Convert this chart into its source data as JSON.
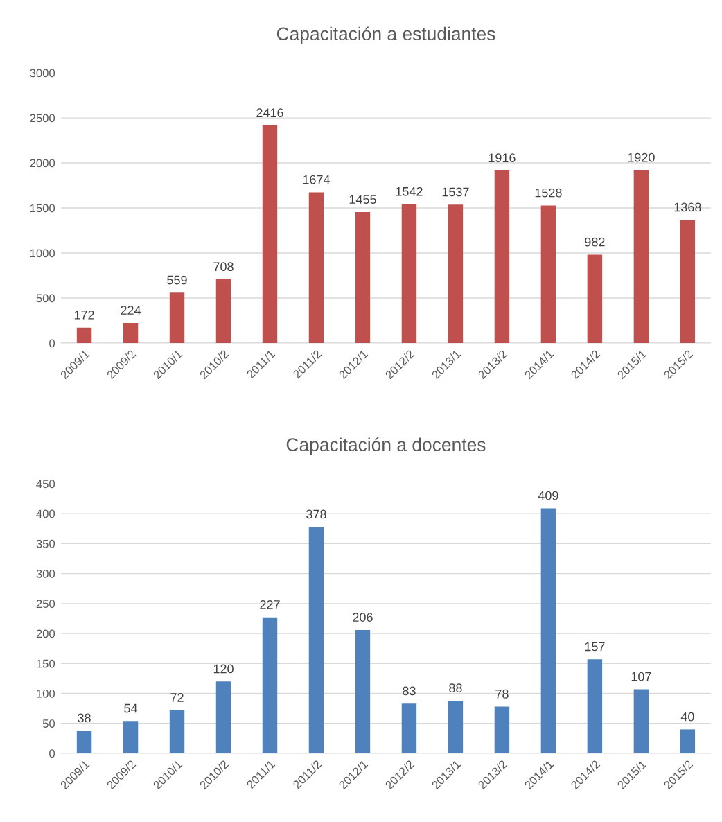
{
  "chart_data": [
    {
      "type": "bar",
      "title": "Capacitación a estudiantes",
      "categories": [
        "2009/1",
        "2009/2",
        "2010/1",
        "2010/2",
        "2011/1",
        "2011/2",
        "2012/1",
        "2012/2",
        "2013/1",
        "2013/2",
        "2014/1",
        "2014/2",
        "2015/1",
        "2015/2"
      ],
      "values": [
        172,
        224,
        559,
        708,
        2416,
        1674,
        1455,
        1542,
        1537,
        1916,
        1528,
        982,
        1920,
        1368
      ],
      "color": "#c0504d",
      "ylim": [
        0,
        3000
      ],
      "yticks": [
        0,
        500,
        1000,
        1500,
        2000,
        2500,
        3000
      ],
      "grid": "y",
      "data_labels": true,
      "legend": false
    },
    {
      "type": "bar",
      "title": "Capacitación a docentes",
      "categories": [
        "2009/1",
        "2009/2",
        "2010/1",
        "2010/2",
        "2011/1",
        "2011/2",
        "2012/1",
        "2012/2",
        "2013/1",
        "2013/2",
        "2014/1",
        "2014/2",
        "2015/1",
        "2015/2"
      ],
      "values": [
        38,
        54,
        72,
        120,
        227,
        378,
        206,
        83,
        88,
        78,
        409,
        157,
        107,
        40
      ],
      "color": "#4f81bd",
      "ylim": [
        0,
        450
      ],
      "yticks": [
        0,
        50,
        100,
        150,
        200,
        250,
        300,
        350,
        400,
        450
      ],
      "grid": "y",
      "data_labels": true,
      "legend": false
    }
  ]
}
